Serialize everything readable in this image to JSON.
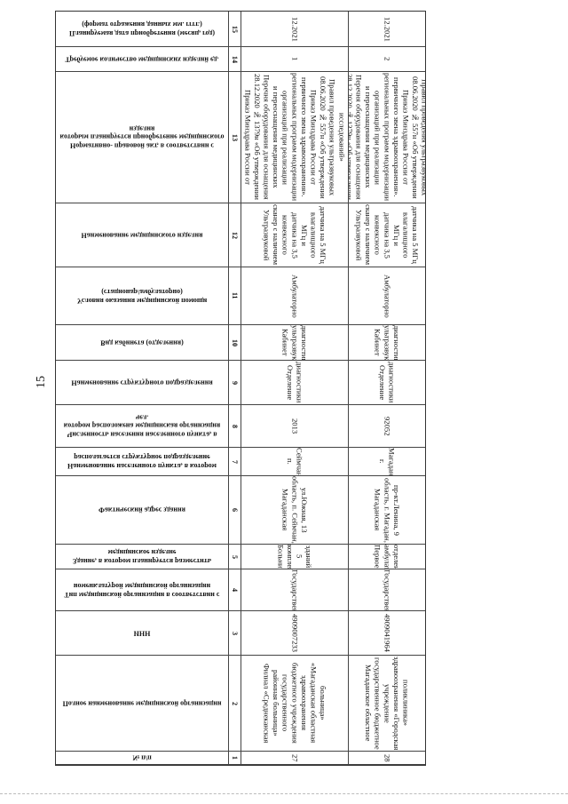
{
  "page_number": "15",
  "rows": [
    {
      "header": "Планируемая дата приобретения (месяц, год) (формат отражения данных мм. гггг.)",
      "num": "15",
      "r27": "12.2021",
      "r28": "12.2021"
    },
    {
      "header": "Требуемое количество медицинских изделий ед.",
      "num": "14",
      "r27": "1",
      "r28": "2"
    },
    {
      "header": "Нормативно- правовой акт, в соответствии с которым планируется приобретение медицинского изделия",
      "num": "13",
      "r27": "Приказ Минздрава России от 28.12.2020 № 1379н «Об утверждении Перечня оборудования для оснащения и переоснащения медицинских организаций при реализации региональных программ модернизации первичного звена здравоохранения». Приказ Минздрава России от 08.06.2020 № 557н «Об утверждении Правил проведения ультразвуковых исследований»",
      "r28": "Приказ Минздрава России от 28.12.2020 № 1379н «Об утверждении Перечня оборудования для оснащения и переоснащения медицинских организаций при реализации региональных программ модернизации первичного звена здравоохранения». Приказ Минздрава России от 08.06.2020 № 557н «Об утверждении Правил проведения ультразвуковых исследований»"
    },
    {
      "header": "Наименование медицинского изделия",
      "num": "12",
      "r27": "Ультразвуковой сканер с наличием конвексного датчика на 3,5 МГц и влагалищного датчика на 5 МГц",
      "r28": "Ультразвуковой сканер с наличием конвексного датчика на 3,5 МГц и влагалищного датчика на 5 МГц"
    },
    {
      "header": "Условия оказания медицинской помощи (стационар/амбулаторно)",
      "num": "11",
      "r27": "Амбулаторно",
      "r28": "Амбулаторно"
    },
    {
      "header": "Вид кабинета (отделения)",
      "num": "10",
      "r27": "Кабинет ультразвуковой диагностики",
      "r28": "Кабинет ультразвуковой диагностики"
    },
    {
      "header": "Наименование структурного подразделения",
      "num": "9",
      "r27": "Отделение диагностики",
      "r28": "Отделение диагностики"
    },
    {
      "header": "Численность населения населенного пункта, в котором расположена медицинская организация чел.",
      "num": "8",
      "r27": "2013",
      "r28": "92052"
    },
    {
      "header": "Наименование населенного пункта, в котором располагается структурное подразделение",
      "num": "7",
      "r27": "п. Сеймчан",
      "r28": "г. Магадан"
    },
    {
      "header": "Фактический адрес здания",
      "num": "6",
      "r27": "Магаданская область, п. Сеймчан, ул.Южная, 13",
      "r28": "Магаданская область, г. Магадан, пр-кт.Ленина, 9"
    },
    {
      "header": "Здание, в котором планируется разместить медицинское изделие",
      "num": "5",
      "r27": "Больничный комплекс 5 зданий",
      "r28": "Первое амбулаторное отделение"
    },
    {
      "header": "Тип медицинской организации в соответствии с номенклатурой медицинской организации",
      "num": "4",
      "r27": "Государственная",
      "r28": "Государственная"
    },
    {
      "header": "ИНН",
      "num": "3",
      "r27": "4909007233",
      "r28": "4909041964"
    },
    {
      "header": "Полное наименование медицинской организации",
      "num": "2",
      "r27": "Филиал «Среднеканская районная больница» государственного бюджетного учреждения здравоохранения «Магаданская областная больница»",
      "r28": "Магаданское областное государственное бюджетное учреждение здравоохранения «Городская поликлиника»"
    },
    {
      "header": "№ п/п",
      "num": "1",
      "r27": "27",
      "r28": "28"
    }
  ]
}
